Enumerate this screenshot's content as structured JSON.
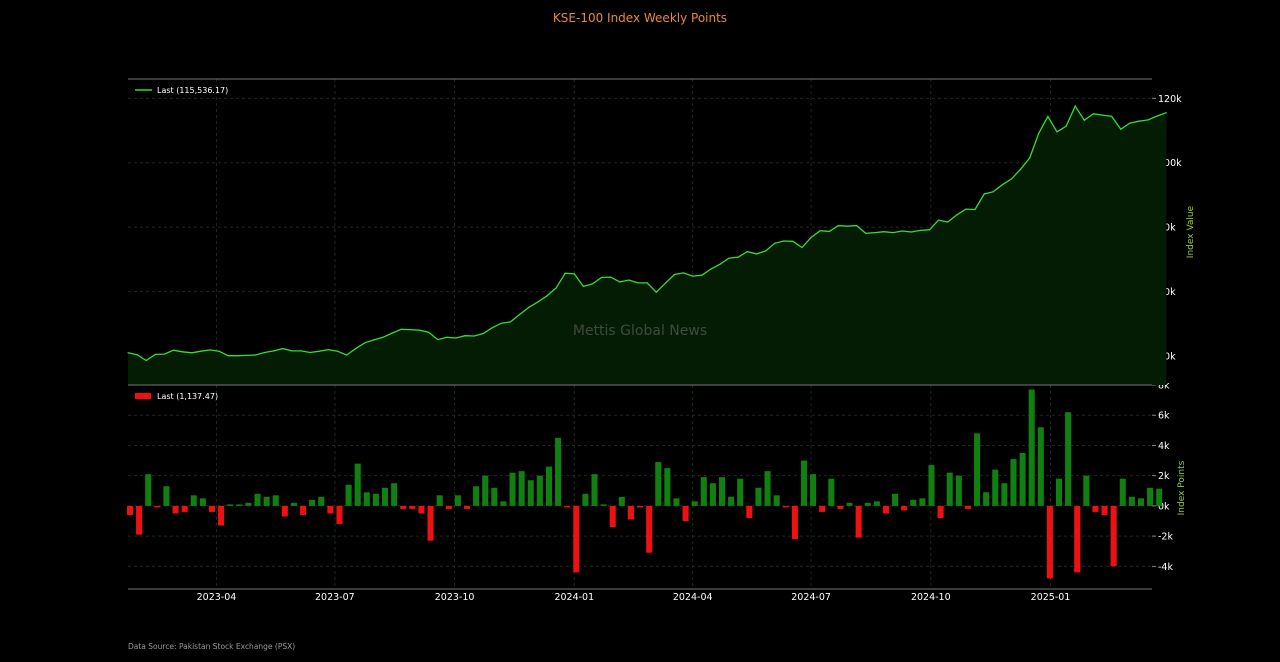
{
  "page": {
    "title": "KSE-100 Index Weekly Points",
    "source": "Data Source: Pakistan Stock Exchange (PSX)",
    "watermark": "Mettis Global News"
  },
  "chart_data": [
    {
      "type": "area",
      "title": "KSE-100 Index Weekly Points",
      "ylabel": "Index Value",
      "legend": "Last (115,536.17)",
      "legend_position": "top-left",
      "color": "#33dd33",
      "ylim": [
        31000,
        126000
      ],
      "yticks": [
        40000,
        60000,
        80000,
        100000,
        120000
      ],
      "ytick_labels": [
        "40k",
        "60k",
        "80k",
        "100k",
        "120k"
      ],
      "x_start": "2023-01-23",
      "x_step_days": 7,
      "x_end": "2025-03-20",
      "xticks": [
        "2023-04-01",
        "2023-07-01",
        "2023-10-01",
        "2024-01-01",
        "2024-04-01",
        "2024-07-01",
        "2024-10-01",
        "2025-01-01"
      ],
      "xtick_labels": [
        "2023-04",
        "2023-07",
        "2023-10",
        "2024-01",
        "2024-04",
        "2024-07",
        "2024-10",
        "2025-01"
      ],
      "grid": true,
      "values": [
        41000,
        40400,
        38600,
        40500,
        40600,
        41800,
        41300,
        41000,
        41500,
        41900,
        41500,
        40100,
        40100,
        40200,
        40300,
        41100,
        41600,
        42300,
        41600,
        41600,
        41100,
        41500,
        42000,
        41500,
        40300,
        42300,
        44100,
        45000,
        45800,
        47100,
        48300,
        48200,
        48000,
        47400,
        45100,
        45800,
        45600,
        46300,
        46200,
        47000,
        48800,
        50200,
        50600,
        52900,
        55100,
        56800,
        58700,
        61100,
        65700,
        65500,
        61600,
        62400,
        64400,
        64500,
        63000,
        63600,
        62700,
        62700,
        59800,
        62600,
        65300,
        65800,
        64800,
        65100,
        67000,
        68500,
        70400,
        70700,
        72400,
        71700,
        72600,
        75000,
        75700,
        75600,
        73700,
        76800,
        78900,
        78700,
        80500,
        80300,
        80500,
        78100,
        78300,
        78600,
        78300,
        78800,
        78500,
        79000,
        79200,
        82200,
        81600,
        83800,
        85600,
        85500,
        90300,
        91000,
        93200,
        95000,
        98000,
        101500,
        109200,
        114400,
        109600,
        111300,
        117600,
        113200,
        115200,
        114800,
        114400,
        110400,
        112300,
        112900,
        113300,
        114500,
        115536
      ]
    },
    {
      "type": "bar",
      "ylabel": "Index Points",
      "legend": "Last (1,137.47)",
      "legend_position": "top-left",
      "positive_color": "#108010",
      "negative_color": "#ee1111",
      "ylim": [
        -5500,
        8000
      ],
      "yticks": [
        -4000,
        -2000,
        0,
        2000,
        4000,
        6000,
        8000
      ],
      "ytick_labels": [
        "-4k",
        "-2k",
        "0k",
        "2k",
        "4k",
        "6k",
        "8k"
      ],
      "grid": true,
      "values": [
        -600,
        -1900,
        2100,
        -100,
        1300,
        -500,
        -400,
        700,
        500,
        -400,
        -1300,
        100,
        100,
        200,
        800,
        600,
        700,
        -700,
        200,
        -600,
        400,
        600,
        -500,
        -1200,
        1400,
        2800,
        900,
        800,
        1200,
        1500,
        -200,
        -200,
        -500,
        -2300,
        700,
        -200,
        700,
        -200,
        1300,
        2000,
        1200,
        300,
        2200,
        2300,
        1700,
        2000,
        2600,
        4500,
        -100,
        -4400,
        800,
        2100,
        100,
        -1400,
        600,
        -900,
        -100,
        -3100,
        2900,
        2500,
        500,
        -1000,
        300,
        1900,
        1500,
        1900,
        600,
        1800,
        -800,
        1200,
        2300,
        700,
        -100,
        -2200,
        3000,
        2100,
        -400,
        1800,
        -200,
        200,
        -2100,
        200,
        300,
        -500,
        800,
        -300,
        400,
        500,
        2700,
        -800,
        2200,
        2000,
        -200,
        4800,
        900,
        2400,
        1500,
        3100,
        3500,
        7700,
        5200,
        -4800,
        1800,
        6200,
        -4400,
        2000,
        -400,
        -600,
        -4000,
        1800,
        600,
        500,
        1200,
        1137
      ]
    }
  ]
}
